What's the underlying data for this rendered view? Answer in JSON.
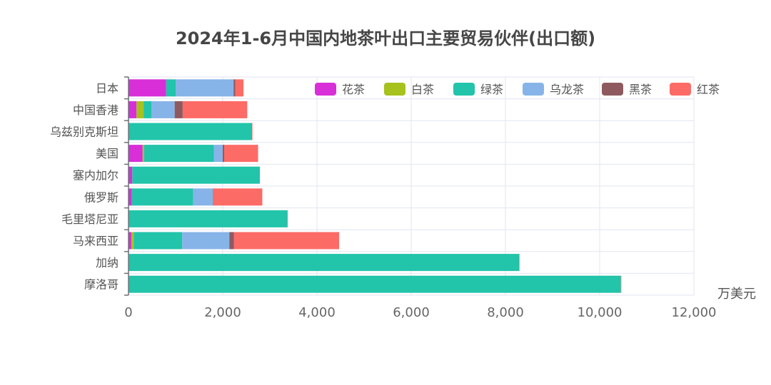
{
  "chart_data": {
    "type": "bar",
    "orientation": "horizontal",
    "stacked": true,
    "title": "2024年1-6月中国内地茶叶出口主要贸易伙伴(出口额)",
    "unit_label": "万美元",
    "categories": [
      "日本",
      "中国香港",
      "乌兹别克斯坦",
      "美国",
      "塞内加尔",
      "俄罗斯",
      "毛里塔尼亚",
      "马来西亚",
      "加纳",
      "摩洛哥"
    ],
    "xlim": [
      0,
      12000
    ],
    "xticks": [
      "0",
      "2,000",
      "4,000",
      "6,000",
      "8,000",
      "10,000",
      "12,000"
    ],
    "legend_position": "top-right",
    "grid": true,
    "series": [
      {
        "name": "花茶",
        "color": "#d82fd8",
        "values": [
          800,
          170,
          10,
          300,
          80,
          70,
          10,
          60,
          10,
          10
        ]
      },
      {
        "name": "白茶",
        "color": "#a7c11d",
        "values": [
          0,
          150,
          0,
          30,
          0,
          0,
          0,
          50,
          0,
          0
        ]
      },
      {
        "name": "绿茶",
        "color": "#22c4aa",
        "values": [
          200,
          170,
          2600,
          1480,
          2700,
          1300,
          3360,
          1030,
          8280,
          10440
        ]
      },
      {
        "name": "乌龙茶",
        "color": "#87b4e8",
        "values": [
          1230,
          490,
          0,
          190,
          0,
          420,
          0,
          1000,
          0,
          0
        ]
      },
      {
        "name": "黑茶",
        "color": "#8e5a5f",
        "values": [
          40,
          170,
          10,
          30,
          0,
          10,
          0,
          100,
          0,
          0
        ]
      },
      {
        "name": "红茶",
        "color": "#fd6b67",
        "values": [
          170,
          1370,
          10,
          720,
          10,
          1040,
          10,
          2230,
          10,
          10
        ]
      }
    ]
  }
}
